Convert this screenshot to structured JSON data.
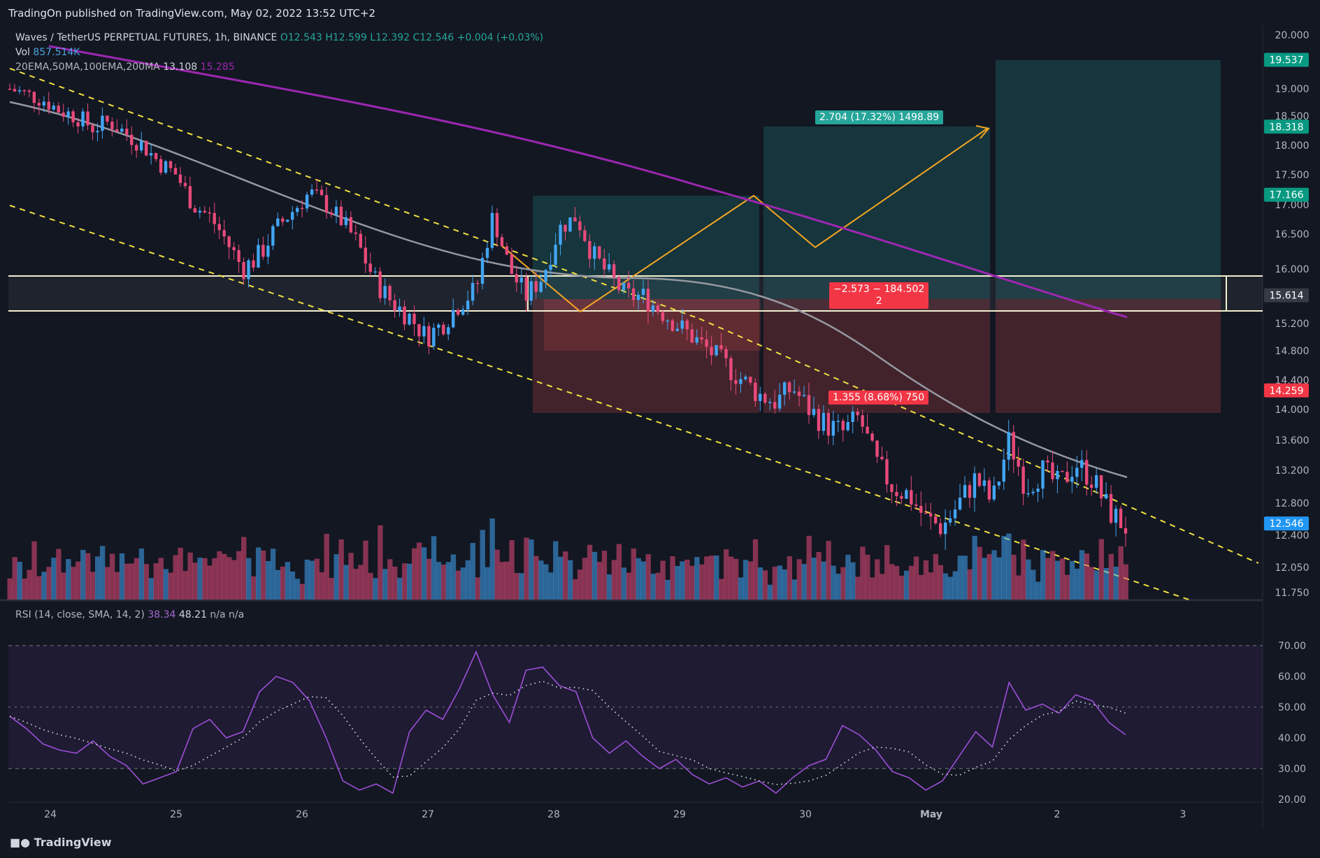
{
  "header": {
    "published": "TradingOn published on TradingView.com, May 02, 2022 13:52 UTC+2"
  },
  "legend": {
    "symbol": "Waves / TetherUS PERPETUAL FUTURES, 1h, BINANCE",
    "open": "O12.543",
    "high": "H12.599",
    "low": "L12.392",
    "close": "C12.546",
    "change": "+0.004 (+0.03%)",
    "vol_label": "Vol",
    "vol_value": "857.514K",
    "ma_label": "20EMA,50MA,100EMA,200MA",
    "ma_v1": "13.108",
    "ma_v2": "15.285"
  },
  "rsi_legend": {
    "label": "RSI (14, close, SMA, 14, 2)",
    "v1": "38.34",
    "v2": "48.21",
    "na": "n/a  n/a"
  },
  "tags": {
    "long_profit": "2.704 (17.32%) 1498.89",
    "short_stop": "−2.573 − 184.502\n2",
    "target": "1.355 (8.68%) 750"
  },
  "footer": {
    "logo": "TradingView"
  },
  "colors": {
    "up": "#26a69a",
    "down": "#ef5350",
    "bg": "#131722",
    "ma200": "#9c27b0",
    "ma50": "#b2b5be"
  },
  "chart_data": {
    "type": "candlestick",
    "y_ticks": [
      "20.000",
      "19.000",
      "18.500",
      "18.000",
      "17.500",
      "17.000",
      "16.500",
      "16.000",
      "15.200",
      "14.800",
      "14.400",
      "14.000",
      "13.600",
      "13.200",
      "12.800",
      "12.400",
      "12.050",
      "11.750"
    ],
    "price_tags": [
      {
        "label": "19.537",
        "kind": "green"
      },
      {
        "label": "18.318",
        "kind": "green"
      },
      {
        "label": "17.166",
        "kind": "green"
      },
      {
        "label": "15.614",
        "kind": "gray"
      },
      {
        "label": "14.259",
        "kind": "red"
      },
      {
        "label": "12.546",
        "kind": "blue"
      }
    ],
    "rsi_ticks": [
      "70.00",
      "60.00",
      "50.00",
      "40.00",
      "30.00",
      "20.00"
    ],
    "x_ticks": [
      "24",
      "25",
      "26",
      "27",
      "28",
      "29",
      "30",
      "May",
      "2",
      "3"
    ],
    "price_path": [
      19.0,
      18.9,
      18.8,
      18.6,
      18.5,
      18.3,
      18.4,
      18.2,
      18.0,
      17.7,
      17.5,
      17.0,
      16.8,
      16.4,
      16.0,
      16.2,
      16.6,
      16.9,
      17.2,
      17.0,
      16.7,
      16.3,
      15.8,
      15.5,
      15.3,
      15.0,
      15.2,
      15.5,
      15.7,
      16.8,
      16.0,
      15.6,
      15.9,
      16.6,
      16.8,
      16.2,
      15.9,
      15.6,
      15.6,
      15.4,
      15.2,
      15.0,
      14.8,
      14.6,
      14.4,
      14.2,
      14.1,
      14.3,
      14.0,
      13.8,
      13.7,
      13.9,
      13.3,
      13.0,
      12.9,
      12.6,
      12.5,
      12.8,
      13.1,
      12.8,
      13.6,
      13.0,
      13.2,
      13.0,
      13.3,
      13.1,
      12.7,
      12.5
    ],
    "rsi_path": [
      47,
      43,
      38,
      36,
      35,
      39,
      34,
      31,
      25,
      27,
      29,
      43,
      46,
      40,
      42,
      55,
      60,
      58,
      52,
      40,
      26,
      23,
      25,
      22,
      42,
      49,
      46,
      56,
      68,
      54,
      45,
      62,
      63,
      57,
      55,
      40,
      35,
      39,
      34,
      30,
      33,
      28,
      25,
      27,
      24,
      26,
      22,
      27,
      31,
      33,
      44,
      41,
      36,
      29,
      27,
      23,
      26,
      34,
      42,
      37,
      58,
      49,
      51,
      48,
      54,
      52,
      45,
      41
    ]
  }
}
